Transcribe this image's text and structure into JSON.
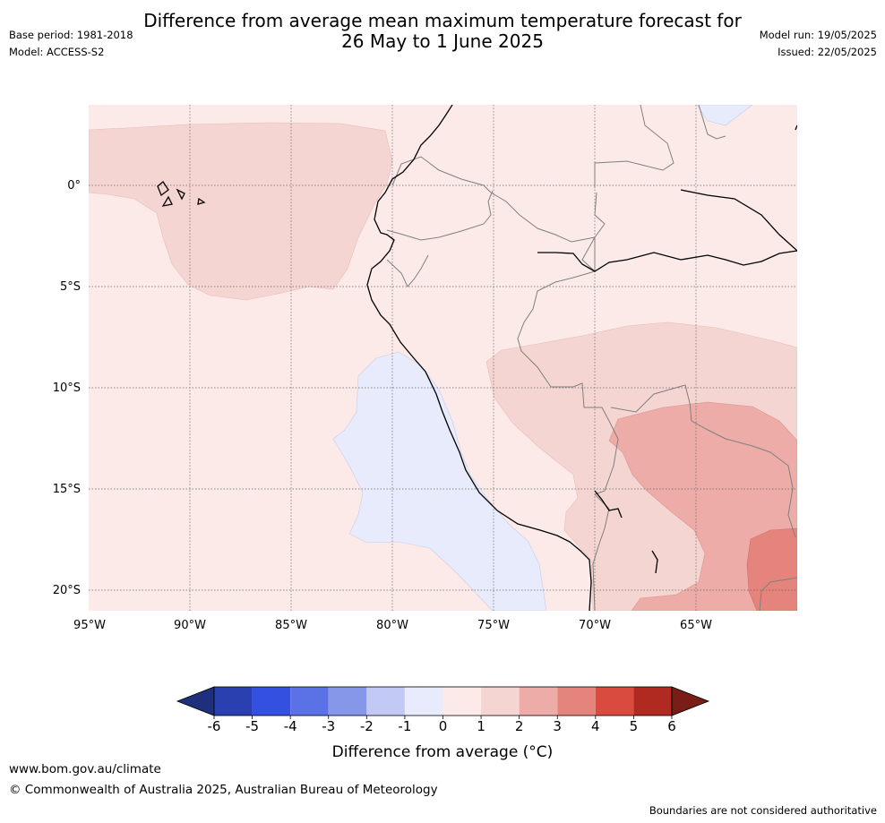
{
  "title_line1": "Difference from average mean maximum temperature forecast for",
  "title_line2": "26 May to 1 June 2025",
  "base_period": "Base period: 1981-2018",
  "model": "Model: ACCESS-S2",
  "model_run": "Model run: 19/05/2025",
  "issued": "Issued: 22/05/2025",
  "lat_labels": [
    "0°",
    "5°S",
    "10°S",
    "15°S",
    "20°S"
  ],
  "lon_labels": [
    "95°W",
    "90°W",
    "85°W",
    "80°W",
    "75°W",
    "70°W",
    "65°W"
  ],
  "colorbar": {
    "ticks": [
      "-6",
      "-5",
      "-4",
      "-3",
      "-2",
      "-1",
      "0",
      "1",
      "2",
      "3",
      "4",
      "5",
      "6"
    ],
    "colors": [
      "#1e2f7e",
      "#2a3fb0",
      "#3450e0",
      "#5b72e6",
      "#8697ea",
      "#c2c9f4",
      "#e8ebfb",
      "#fbeae8",
      "#f5d5d2",
      "#edaca7",
      "#e5847c",
      "#d94b3e",
      "#b02a22",
      "#7a1d17"
    ],
    "title": "Difference from average (°C)"
  },
  "website": "www.bom.gov.au/climate",
  "copyright": "© Commonwealth of Australia 2025, Australian Bureau of Meteorology",
  "disclaimer": "Boundaries are not considered authoritative"
}
